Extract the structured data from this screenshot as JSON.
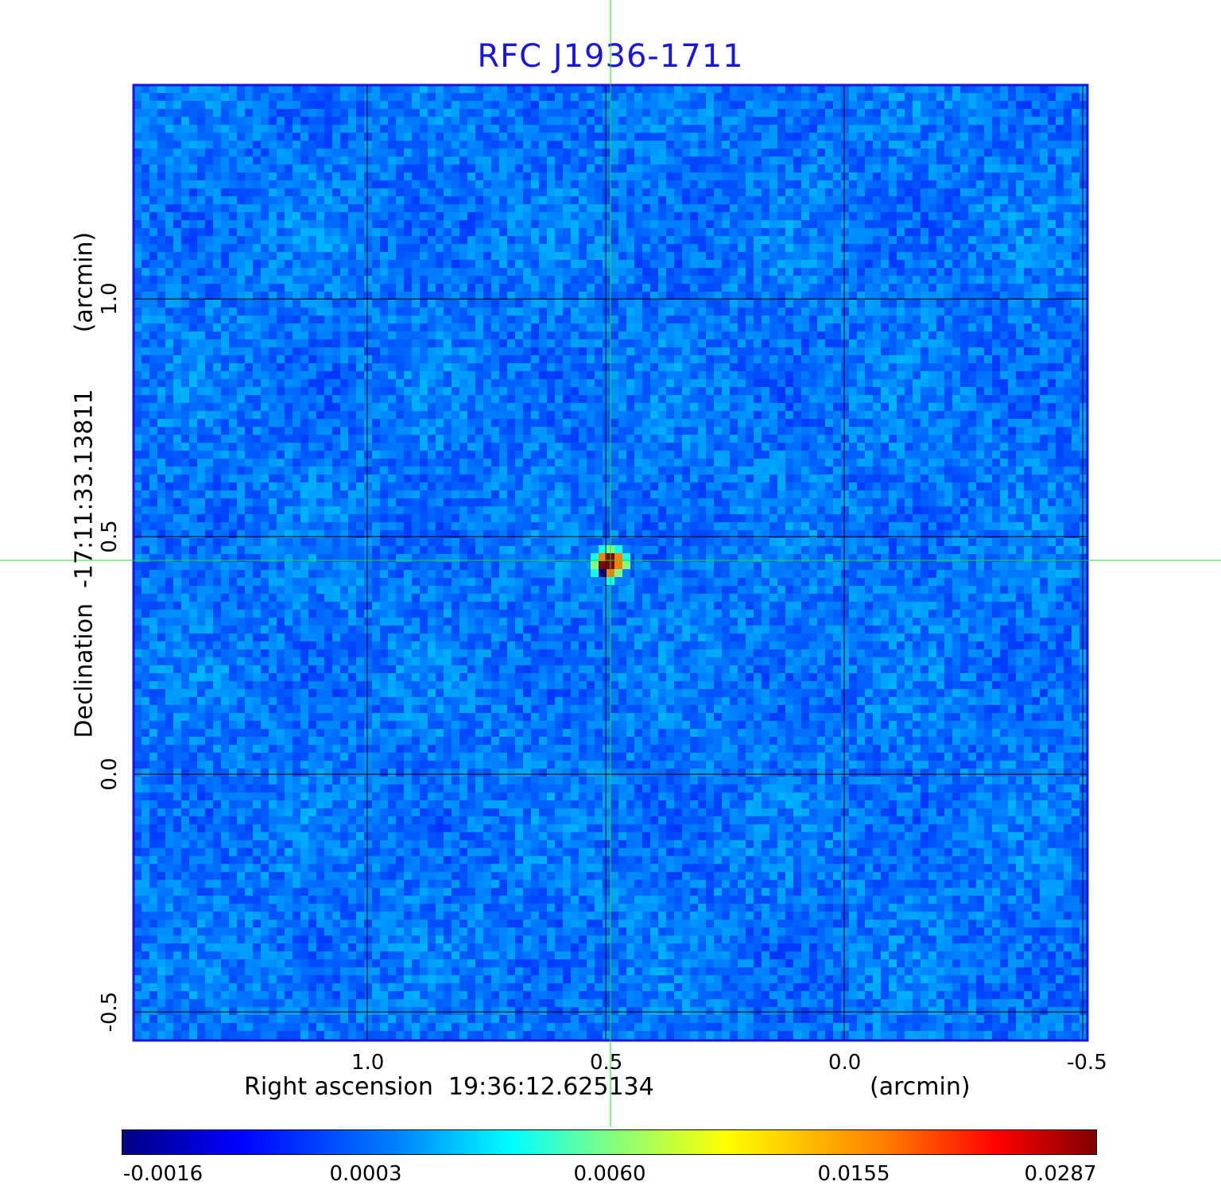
{
  "chart_data": {
    "type": "heatmap",
    "title": "RFC J1936-1711",
    "xlabel": "Right ascension  19:36:12.625134",
    "xunit": "(arcmin)",
    "ylabel": "Declination  -17:11:33.13811",
    "yunit": "(arcmin)",
    "xticks": [
      "1.0",
      "0.5",
      "0.0",
      "-0.5"
    ],
    "yticks": [
      "1.0",
      "0.5",
      "0.0",
      "-0.5"
    ],
    "xtick_values": [
      1.0,
      0.5,
      0.0,
      -0.5
    ],
    "ytick_values": [
      1.0,
      0.5,
      0.0,
      -0.5
    ],
    "xlim": [
      1.49,
      -0.51
    ],
    "ylim": [
      -0.56,
      1.45
    ],
    "grid": true,
    "colorbar": {
      "tick_labels": [
        "-0.0016",
        "0.0003",
        "0.0060",
        "0.0155",
        "0.0287"
      ],
      "tick_values": [
        -0.0016,
        0.0003,
        0.006,
        0.0155,
        0.0287
      ],
      "colormap": "jet"
    },
    "background_level": 0.0003,
    "source": {
      "x": 0.49,
      "y": 0.44,
      "peak": 0.0287,
      "shape": [
        [
          0.0003,
          0.0035,
          0.006,
          0.0035,
          0.0003
        ],
        [
          0.0035,
          0.0155,
          0.0287,
          0.0155,
          0.0035
        ],
        [
          0.006,
          0.0287,
          0.0287,
          0.0155,
          0.006
        ],
        [
          0.0035,
          -0.0016,
          0.0155,
          0.006,
          0.0003
        ],
        [
          0.0003,
          0.0003,
          0.0035,
          0.0003,
          0.0003
        ]
      ]
    },
    "crosshair": {
      "x": 0.49,
      "y": 0.45
    }
  },
  "colors": {
    "title": "#1a16d8",
    "frame": "#1a16d8",
    "grid": "#000000",
    "crosshair": "#22dd22"
  }
}
